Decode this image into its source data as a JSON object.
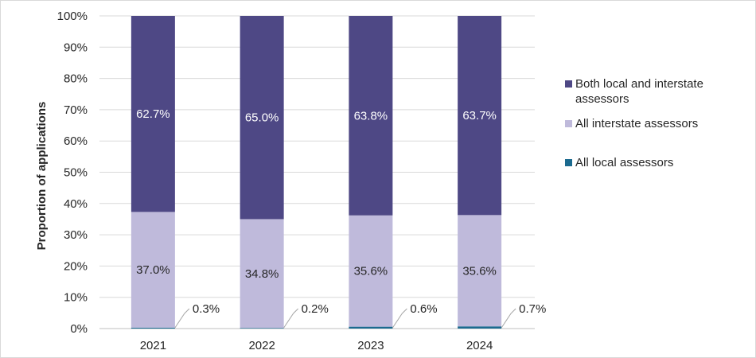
{
  "chart_data": {
    "type": "bar",
    "stacked": true,
    "categories": [
      "2021",
      "2022",
      "2023",
      "2024"
    ],
    "series": [
      {
        "name": "All local assessors",
        "values": [
          0.3,
          0.2,
          0.6,
          0.7
        ],
        "labels": [
          "0.3%",
          "0.2%",
          "0.6%",
          "0.7%"
        ],
        "color": "#1b6a8f"
      },
      {
        "name": "All interstate assessors",
        "values": [
          37.0,
          34.8,
          35.6,
          35.6
        ],
        "labels": [
          "37.0%",
          "34.8%",
          "35.6%",
          "35.6%"
        ],
        "color": "#bfbadb"
      },
      {
        "name": "Both local and interstate assessors",
        "values": [
          62.7,
          65.0,
          63.8,
          63.7
        ],
        "labels": [
          "62.7%",
          "65.0%",
          "63.8%",
          "63.7%"
        ],
        "color": "#4e4885"
      }
    ],
    "legend": [
      {
        "lines": [
          "Both local and interstate",
          "assessors"
        ],
        "color": "#4e4885"
      },
      {
        "lines": [
          "All interstate assessors"
        ],
        "color": "#bfbadb"
      },
      {
        "lines": [
          "All local assessors"
        ],
        "color": "#1b6a8f"
      }
    ],
    "legend_position": "right",
    "ylabel": "Proportion of applications",
    "xlabel": "",
    "ylim": [
      0,
      100
    ],
    "yticks": [
      "0%",
      "10%",
      "20%",
      "30%",
      "40%",
      "50%",
      "60%",
      "70%",
      "80%",
      "90%",
      "100%"
    ],
    "grid": true
  }
}
